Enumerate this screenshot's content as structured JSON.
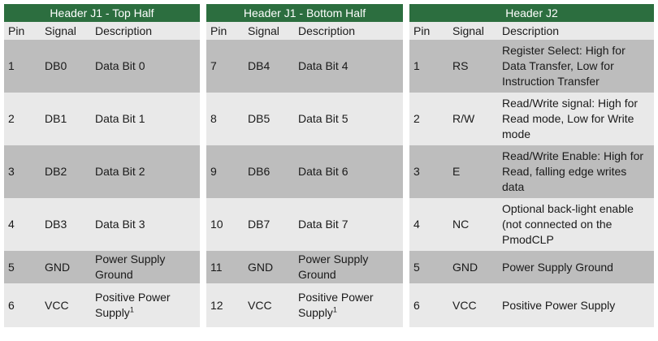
{
  "tables": [
    {
      "title": "Header J1 - Top Half",
      "columns": [
        "Pin",
        "Signal",
        "Description"
      ],
      "rows": [
        {
          "pin": "1",
          "signal": "DB0",
          "description": "Data Bit 0"
        },
        {
          "pin": "2",
          "signal": "DB1",
          "description": "Data Bit 1"
        },
        {
          "pin": "3",
          "signal": "DB2",
          "description": "Data Bit 2"
        },
        {
          "pin": "4",
          "signal": "DB3",
          "description": "Data Bit 3"
        },
        {
          "pin": "5",
          "signal": "GND",
          "description": "Power Supply Ground"
        },
        {
          "pin": "6",
          "signal": "VCC",
          "description": "Positive Power Supply",
          "footnote": "1"
        }
      ]
    },
    {
      "title": "Header J1 - Bottom Half",
      "columns": [
        "Pin",
        "Signal",
        "Description"
      ],
      "rows": [
        {
          "pin": "7",
          "signal": "DB4",
          "description": "Data Bit 4"
        },
        {
          "pin": "8",
          "signal": "DB5",
          "description": "Data Bit 5"
        },
        {
          "pin": "9",
          "signal": "DB6",
          "description": "Data Bit 6"
        },
        {
          "pin": "10",
          "signal": "DB7",
          "description": "Data Bit 7"
        },
        {
          "pin": "11",
          "signal": "GND",
          "description": "Power Supply Ground"
        },
        {
          "pin": "12",
          "signal": "VCC",
          "description": "Positive Power Supply",
          "footnote": "1"
        }
      ]
    },
    {
      "title": "Header J2",
      "columns": [
        "Pin",
        "Signal",
        "Description"
      ],
      "rows": [
        {
          "pin": "1",
          "signal": "RS",
          "description": "Register Select: High for Data Transfer, Low for Instruction Transfer"
        },
        {
          "pin": "2",
          "signal": "R/W",
          "description": "Read/Write signal: High for Read mode, Low for Write mode"
        },
        {
          "pin": "3",
          "signal": "E",
          "description": "Read/Write Enable: High for Read, falling edge writes data"
        },
        {
          "pin": "4",
          "signal": "NC",
          "description": "Optional back-light enable (not connected on the PmodCLP"
        },
        {
          "pin": "5",
          "signal": "GND",
          "description": "Power Supply Ground"
        },
        {
          "pin": "6",
          "signal": "VCC",
          "description": "Positive Power Supply"
        }
      ]
    }
  ]
}
